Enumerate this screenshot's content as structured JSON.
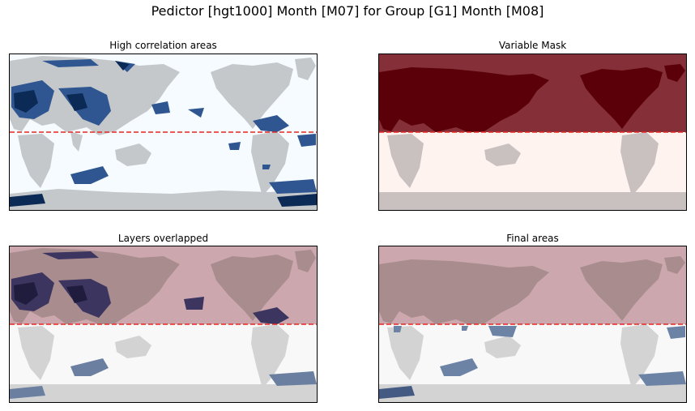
{
  "figure": {
    "suptitle": "Pedictor [hgt1000] Month [M07] for Group [G1] Month [M08]"
  },
  "chart_data": [
    {
      "type": "heatmap",
      "title": "High correlation areas",
      "xlabel": "",
      "ylabel": "",
      "ticks_shown": false,
      "reference_line": {
        "style": "dashed",
        "color": "#e8251f"
      },
      "layers": [
        "ocean background",
        "land mask",
        "high correlation areas"
      ],
      "colors": {
        "background": "#f5fbff",
        "land": "#c4c8cb",
        "high_corr": "#2f5690",
        "high_corr_strong": "#0b2a55"
      }
    },
    {
      "type": "heatmap",
      "title": "Variable Mask",
      "xlabel": "",
      "ylabel": "",
      "ticks_shown": false,
      "reference_line": {
        "style": "dashed",
        "color": "#e8251f"
      },
      "layers": [
        "mask region (northern)",
        "land mask"
      ],
      "colors": {
        "mask": "#853038",
        "mask_land": "#5b0008",
        "unmasked": "#fff3f0",
        "land": "#c9c1bf"
      }
    },
    {
      "type": "heatmap",
      "title": "Layers overlapped",
      "xlabel": "",
      "ylabel": "",
      "ticks_shown": false,
      "reference_line": {
        "style": "dashed",
        "color": "#e8251f"
      },
      "layers": [
        "high correlation areas",
        "variable mask (semi-transparent)",
        "land mask"
      ],
      "colors": {
        "mask": "#cca8ae",
        "mask_land": "#a98c8e",
        "unmasked": "#f8f8f8",
        "land": "#d3d3d3",
        "high_corr": "#3b3560",
        "high_corr_strong": "#1f1c3e",
        "high_corr_south": "#6b7fa0"
      }
    },
    {
      "type": "heatmap",
      "title": "Final areas",
      "xlabel": "",
      "ylabel": "",
      "ticks_shown": false,
      "reference_line": {
        "style": "dashed",
        "color": "#e8251f"
      },
      "layers": [
        "final selected areas",
        "variable mask (semi-transparent)",
        "land mask"
      ],
      "colors": {
        "mask": "#cca8ae",
        "mask_land": "#a98c8e",
        "unmasked": "#f8f8f8",
        "land": "#d3d3d3",
        "final": "#6c83a6",
        "final_dark": "#455a82"
      }
    }
  ]
}
